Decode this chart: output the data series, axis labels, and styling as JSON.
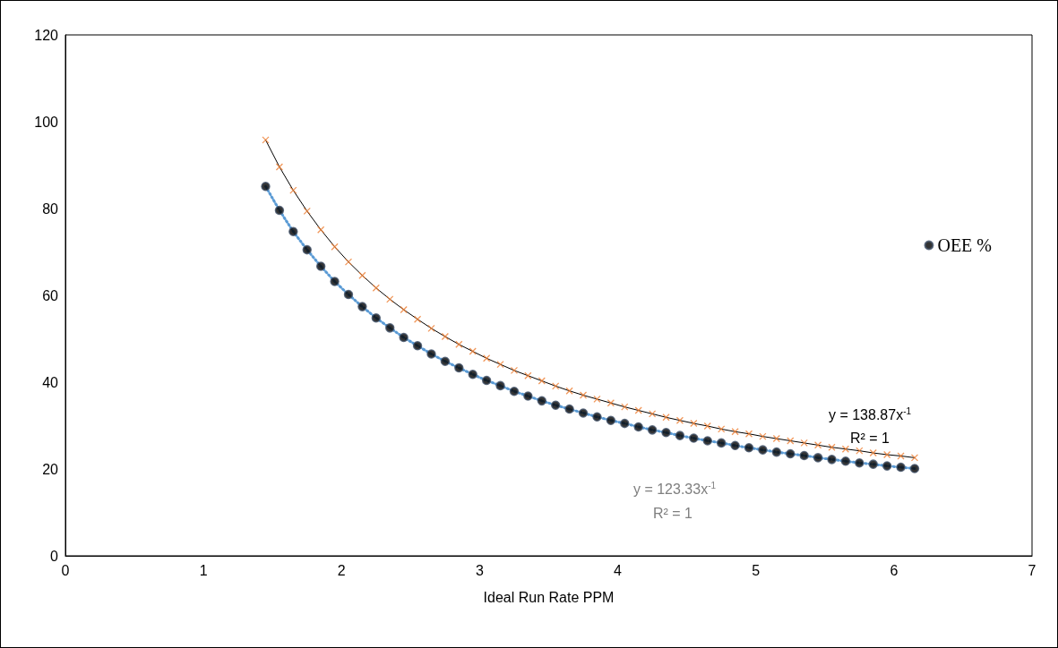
{
  "chart_data": {
    "type": "scatter",
    "xlabel": "Ideal Run Rate PPM",
    "x": [
      1.45,
      1.55,
      1.65,
      1.75,
      1.85,
      1.95,
      2.05,
      2.15,
      2.25,
      2.35,
      2.45,
      2.55,
      2.65,
      2.75,
      2.85,
      2.95,
      3.05,
      3.15,
      3.25,
      3.35,
      3.45,
      3.55,
      3.65,
      3.75,
      3.85,
      3.95,
      4.05,
      4.15,
      4.25,
      4.35,
      4.45,
      4.55,
      4.65,
      4.75,
      4.85,
      4.95,
      5.05,
      5.15,
      5.25,
      5.35,
      5.45,
      5.55,
      5.65,
      5.75,
      5.85,
      5.95,
      6.05,
      6.15
    ],
    "series": [
      {
        "type": "line",
        "color": "#5b9bd5",
        "line_style": "dotted",
        "marker": "none",
        "values": [
          85.1,
          79.6,
          74.7,
          70.5,
          66.7,
          63.2,
          60.2,
          57.4,
          54.8,
          52.5,
          50.3,
          48.4,
          46.5,
          44.8,
          43.3,
          41.8,
          40.4,
          39.2,
          37.9,
          36.8,
          35.7,
          34.7,
          33.8,
          32.9,
          32.0,
          31.2,
          30.5,
          29.7,
          29.0,
          28.4,
          27.7,
          27.1,
          26.5,
          26.0,
          25.4,
          24.9,
          24.4,
          23.9,
          23.5,
          23.1,
          22.6,
          22.2,
          21.8,
          21.4,
          21.1,
          20.7,
          20.4,
          20.1
        ]
      },
      {
        "type": "line",
        "color": "#000000",
        "line_style": "solid",
        "marker": "none",
        "values": [
          95.8,
          89.6,
          84.2,
          79.4,
          75.1,
          71.2,
          67.7,
          64.6,
          61.7,
          59.1,
          56.7,
          54.5,
          52.4,
          50.5,
          48.7,
          47.1,
          45.5,
          44.1,
          42.7,
          41.5,
          40.3,
          39.1,
          38.0,
          37.0,
          36.1,
          35.2,
          34.3,
          33.5,
          32.7,
          31.9,
          31.2,
          30.5,
          29.9,
          29.2,
          28.6,
          28.1,
          27.5,
          27.0,
          26.5,
          26.0,
          25.5,
          25.0,
          24.6,
          24.2,
          23.7,
          23.3,
          23.0,
          22.6
        ]
      },
      {
        "name": "OEE %",
        "color": "#000000",
        "marker": "circle",
        "values": [
          85.1,
          79.6,
          74.7,
          70.5,
          66.7,
          63.2,
          60.2,
          57.4,
          54.8,
          52.5,
          50.3,
          48.4,
          46.5,
          44.8,
          43.3,
          41.8,
          40.4,
          39.2,
          37.9,
          36.8,
          35.7,
          34.7,
          33.8,
          32.9,
          32.0,
          31.2,
          30.5,
          29.7,
          29.0,
          28.4,
          27.7,
          27.1,
          26.5,
          26.0,
          25.4,
          24.9,
          24.4,
          23.9,
          23.5,
          23.1,
          22.6,
          22.2,
          21.8,
          21.4,
          21.1,
          20.7,
          20.4,
          20.1
        ]
      },
      {
        "color": "#ed7d31",
        "marker": "cross",
        "values": [
          95.8,
          89.6,
          84.2,
          79.4,
          75.1,
          71.2,
          67.7,
          64.6,
          61.7,
          59.1,
          56.7,
          54.5,
          52.4,
          50.5,
          48.7,
          47.1,
          45.5,
          44.1,
          42.7,
          41.5,
          40.3,
          39.1,
          38.0,
          37.0,
          36.1,
          35.2,
          34.3,
          33.5,
          32.7,
          31.9,
          31.2,
          30.5,
          29.9,
          29.2,
          28.6,
          28.1,
          27.5,
          27.0,
          26.5,
          26.0,
          25.5,
          25.0,
          24.6,
          24.2,
          23.7,
          23.3,
          23.0,
          22.6
        ]
      }
    ],
    "xlim": [
      0,
      7
    ],
    "xticks": [
      0,
      1,
      2,
      3,
      4,
      5,
      6,
      7
    ],
    "ylim": [
      0,
      120
    ],
    "yticks": [
      0,
      20,
      40,
      60,
      80,
      100,
      120
    ],
    "grid": false,
    "legend": "right",
    "annotations": [
      "y = 123.33x$^{-1}$",
      "R² = 1",
      "y = 138.87x$^{-1}$",
      "R² = 1"
    ]
  }
}
